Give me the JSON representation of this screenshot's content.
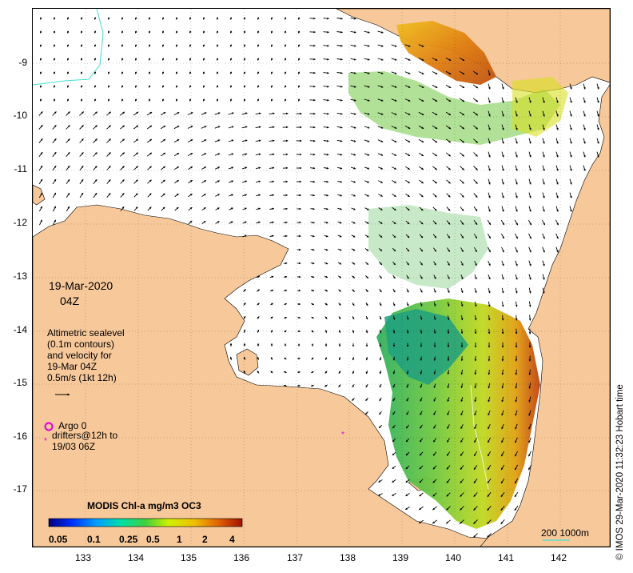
{
  "date": "19-Mar-2020",
  "hour": "04Z",
  "legend_text": {
    "line1": "Altimetric sealevel",
    "line2": "(0.1m contours)",
    "line3": "and velocity for",
    "line4": "19-Mar 04Z",
    "line5": "0.5m/s (1kt 12h)"
  },
  "argo_label": "Argo 0",
  "drifters_line1": "drifters@12h to",
  "drifters_line2": "19/03 06Z",
  "colorbar": {
    "title": "MODIS Chl-a mg/m3 OC3",
    "ticks": [
      "0.05",
      "0.1",
      "0.25",
      "0.5",
      "1",
      "2",
      "4"
    ]
  },
  "scale_label": "200  1000m",
  "credit": "© IMOS 29-Mar-2020 11:32:23 Hobart time",
  "axes": {
    "x_ticks": [
      "133",
      "134",
      "135",
      "136",
      "137",
      "138",
      "139",
      "140",
      "141",
      "142"
    ],
    "y_ticks": [
      "-9",
      "-10",
      "-11",
      "-12",
      "-13",
      "-14",
      "-15",
      "-16",
      "-17"
    ]
  },
  "colors": {
    "land": "#f7c89a",
    "sea": "#ffffff",
    "argo_marker": "#e000e0",
    "drifter_marker": "#e000e0",
    "isobath": "#40e0d0"
  }
}
